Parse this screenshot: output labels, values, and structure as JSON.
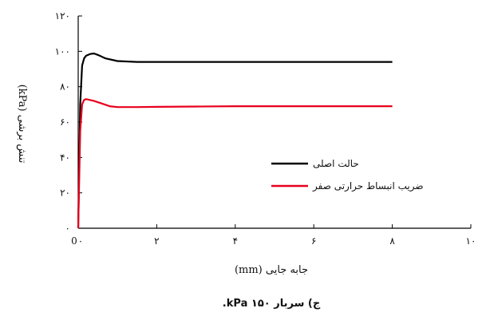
{
  "chart_data": {
    "type": "line",
    "title": "",
    "caption": "ج) سربار ۱۵۰ kPa.",
    "xlabel": "جابه جایی (mm)",
    "ylabel": "تنش برشی (kPa)",
    "xlim": [
      0,
      10
    ],
    "ylim": [
      0,
      120
    ],
    "x_ticks": [
      0,
      2,
      4,
      6,
      8,
      10
    ],
    "x_tick_labels": [
      "۰",
      "۲",
      "۴",
      "۶",
      "۸",
      "۱۰"
    ],
    "x_origin_label": "0",
    "y_ticks": [
      0,
      20,
      40,
      60,
      80,
      100,
      120
    ],
    "y_tick_labels": [
      "۰",
      "۲۰",
      "۴۰",
      "۶۰",
      "۸۰",
      "۱۰۰",
      "۱۲۰"
    ],
    "grid": false,
    "legend_position": "right",
    "series": [
      {
        "name": "حالت اصلی",
        "color": "#000000",
        "x": [
          0,
          0.05,
          0.1,
          0.15,
          0.2,
          0.3,
          0.4,
          0.5,
          0.7,
          1.0,
          1.5,
          2.0,
          3.0,
          4.0,
          5.0,
          6.0,
          7.0,
          8.0
        ],
        "y": [
          0,
          70,
          92,
          96,
          97.5,
          98.5,
          98.8,
          98,
          96,
          94.5,
          94,
          94,
          94,
          94,
          94,
          94,
          94,
          94
        ]
      },
      {
        "name": "ضریب انبساط حرارتی صفر",
        "color": "#e8001c",
        "x": [
          0,
          0.05,
          0.1,
          0.15,
          0.2,
          0.3,
          0.4,
          0.6,
          0.8,
          1.0,
          1.5,
          2.0,
          3.0,
          4.0,
          5.0,
          6.0,
          7.0,
          8.0
        ],
        "y": [
          0,
          55,
          70,
          72.5,
          73,
          72.5,
          72,
          70.5,
          69,
          68.5,
          68.5,
          68.6,
          68.8,
          69,
          69,
          69,
          69,
          69
        ]
      }
    ]
  }
}
